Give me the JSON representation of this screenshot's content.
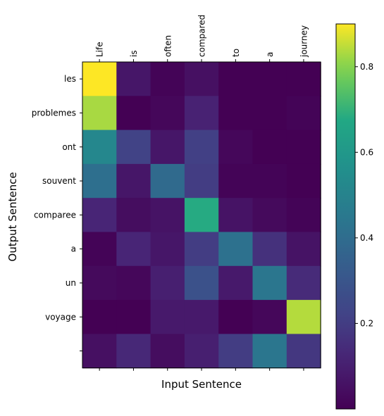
{
  "chart_data": {
    "type": "heatmap",
    "title": "",
    "xlabel": "Input Sentence",
    "ylabel": "Output Sentence",
    "x_tick_labels": [
      "Life",
      "is",
      "often",
      "compared",
      "to",
      "a",
      "journey"
    ],
    "y_tick_labels": [
      "les",
      "problemes",
      "ont",
      "souvent",
      "comparee",
      "a",
      "un",
      "voyage",
      ""
    ],
    "colormap": "viridis",
    "vmin": 0.0,
    "vmax": 0.9,
    "colorbar_ticks": [
      0.2,
      0.4,
      0.6,
      0.8
    ],
    "colorbar_tick_labels": [
      "0.2",
      "0.4",
      "0.6",
      "0.8"
    ],
    "values": [
      [
        0.9,
        0.07,
        0.01,
        0.05,
        0.0,
        0.0,
        0.0
      ],
      [
        0.83,
        0.0,
        0.02,
        0.11,
        0.0,
        0.0,
        0.01
      ],
      [
        0.52,
        0.22,
        0.07,
        0.21,
        0.02,
        0.0,
        0.0
      ],
      [
        0.41,
        0.07,
        0.39,
        0.2,
        0.01,
        0.01,
        0.0
      ],
      [
        0.12,
        0.04,
        0.06,
        0.68,
        0.06,
        0.03,
        0.01
      ],
      [
        0.01,
        0.12,
        0.07,
        0.2,
        0.42,
        0.16,
        0.06
      ],
      [
        0.03,
        0.02,
        0.1,
        0.28,
        0.08,
        0.44,
        0.14
      ],
      [
        0.0,
        0.0,
        0.08,
        0.08,
        0.0,
        0.02,
        0.84
      ],
      [
        0.05,
        0.13,
        0.04,
        0.1,
        0.2,
        0.44,
        0.18
      ]
    ]
  }
}
